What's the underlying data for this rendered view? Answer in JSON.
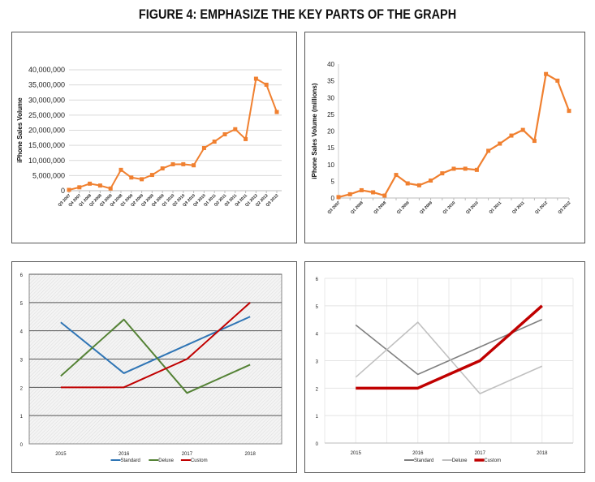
{
  "title": "FIGURE 4: EMPHASIZE THE KEY PARTS OF THE GRAPH",
  "chart_data": [
    {
      "type": "line",
      "title": "",
      "ylabel": "iPhone Sales Volume",
      "xlabel": "",
      "ylim": [
        0,
        40000000
      ],
      "yticks": [
        "0",
        "5,000,000",
        "10,000,000",
        "15,000,000",
        "20,000,000",
        "25,000,000",
        "30,000,000",
        "35,000,000",
        "40,000,000"
      ],
      "categories": [
        "Q3 2007",
        "Q4 2007",
        "Q1 2008",
        "Q2 2008",
        "Q3 2008",
        "Q4 2008",
        "Q1 2009",
        "Q2 2009",
        "Q3 2009",
        "Q4 2009",
        "Q1 2010",
        "Q2 2010",
        "Q3 2010",
        "Q4 2010",
        "Q1 2011",
        "Q2 2011",
        "Q3 2011",
        "Q4 2011",
        "Q1 2012",
        "Q2 2012",
        "Q3 2012"
      ],
      "series": [
        {
          "name": "iPhone Sales Volume",
          "color": "#f08030",
          "values": [
            270000,
            1120000,
            2320000,
            1700000,
            720000,
            6890000,
            4360000,
            3790000,
            5210000,
            7370000,
            8740000,
            8750000,
            8400000,
            14100000,
            16240000,
            18650000,
            20340000,
            17070000,
            37040000,
            35060000,
            26030000
          ]
        }
      ],
      "grid": true
    },
    {
      "type": "line",
      "title": "",
      "ylabel": "iPhone Sales Volume (millions)",
      "xlabel": "",
      "ylim": [
        0,
        40
      ],
      "yticks": [
        "0",
        "5",
        "10",
        "15",
        "20",
        "25",
        "30",
        "35",
        "40"
      ],
      "categories": [
        "Q3 2007",
        "Q4 2007",
        "Q1 2008",
        "Q2 2008",
        "Q3 2008",
        "Q4 2008",
        "Q1 2009",
        "Q2 2009",
        "Q3 2009",
        "Q4 2009",
        "Q1 2010",
        "Q2 2010",
        "Q3 2010",
        "Q4 2010",
        "Q1 2011",
        "Q2 2011",
        "Q3 2011",
        "Q4 2011",
        "Q1 2012",
        "Q2 2012",
        "Q3 2012"
      ],
      "label_every": 2,
      "series": [
        {
          "name": "iPhone Sales Volume (millions)",
          "color": "#f08030",
          "values": [
            0.27,
            1.12,
            2.32,
            1.7,
            0.72,
            6.89,
            4.36,
            3.79,
            5.21,
            7.37,
            8.74,
            8.75,
            8.4,
            14.1,
            16.24,
            18.65,
            20.34,
            17.07,
            37.04,
            35.06,
            26.03
          ]
        }
      ],
      "grid": false
    },
    {
      "type": "line",
      "title": "",
      "ylim": [
        0,
        6
      ],
      "yticks": [
        "0",
        "1",
        "2",
        "3",
        "4",
        "5",
        "6"
      ],
      "categories": [
        "2015",
        "2016",
        "2017",
        "2018"
      ],
      "legend": "bottom",
      "series": [
        {
          "name": "Standard",
          "color": "#2f75b5",
          "values": [
            4.3,
            2.5,
            3.5,
            4.5
          ]
        },
        {
          "name": "Deluxe",
          "color": "#548235",
          "values": [
            2.4,
            4.4,
            1.8,
            2.8
          ]
        },
        {
          "name": "Custom",
          "color": "#c00000",
          "values": [
            2,
            2,
            3,
            5
          ]
        }
      ],
      "grid": true
    },
    {
      "type": "line",
      "title": "",
      "ylim": [
        0,
        6
      ],
      "yticks": [
        "0",
        "1",
        "2",
        "3",
        "4",
        "5",
        "6"
      ],
      "categories": [
        "2015",
        "2016",
        "2017",
        "2018"
      ],
      "legend": "bottom",
      "series": [
        {
          "name": "Standard",
          "color": "#808080",
          "values": [
            4.3,
            2.5,
            3.5,
            4.5
          ]
        },
        {
          "name": "Deluxe",
          "color": "#c0c0c0",
          "values": [
            2.4,
            4.4,
            1.8,
            2.8
          ]
        },
        {
          "name": "Custom",
          "color": "#c00000",
          "values": [
            2,
            2,
            3,
            5
          ]
        }
      ],
      "grid": true
    }
  ]
}
